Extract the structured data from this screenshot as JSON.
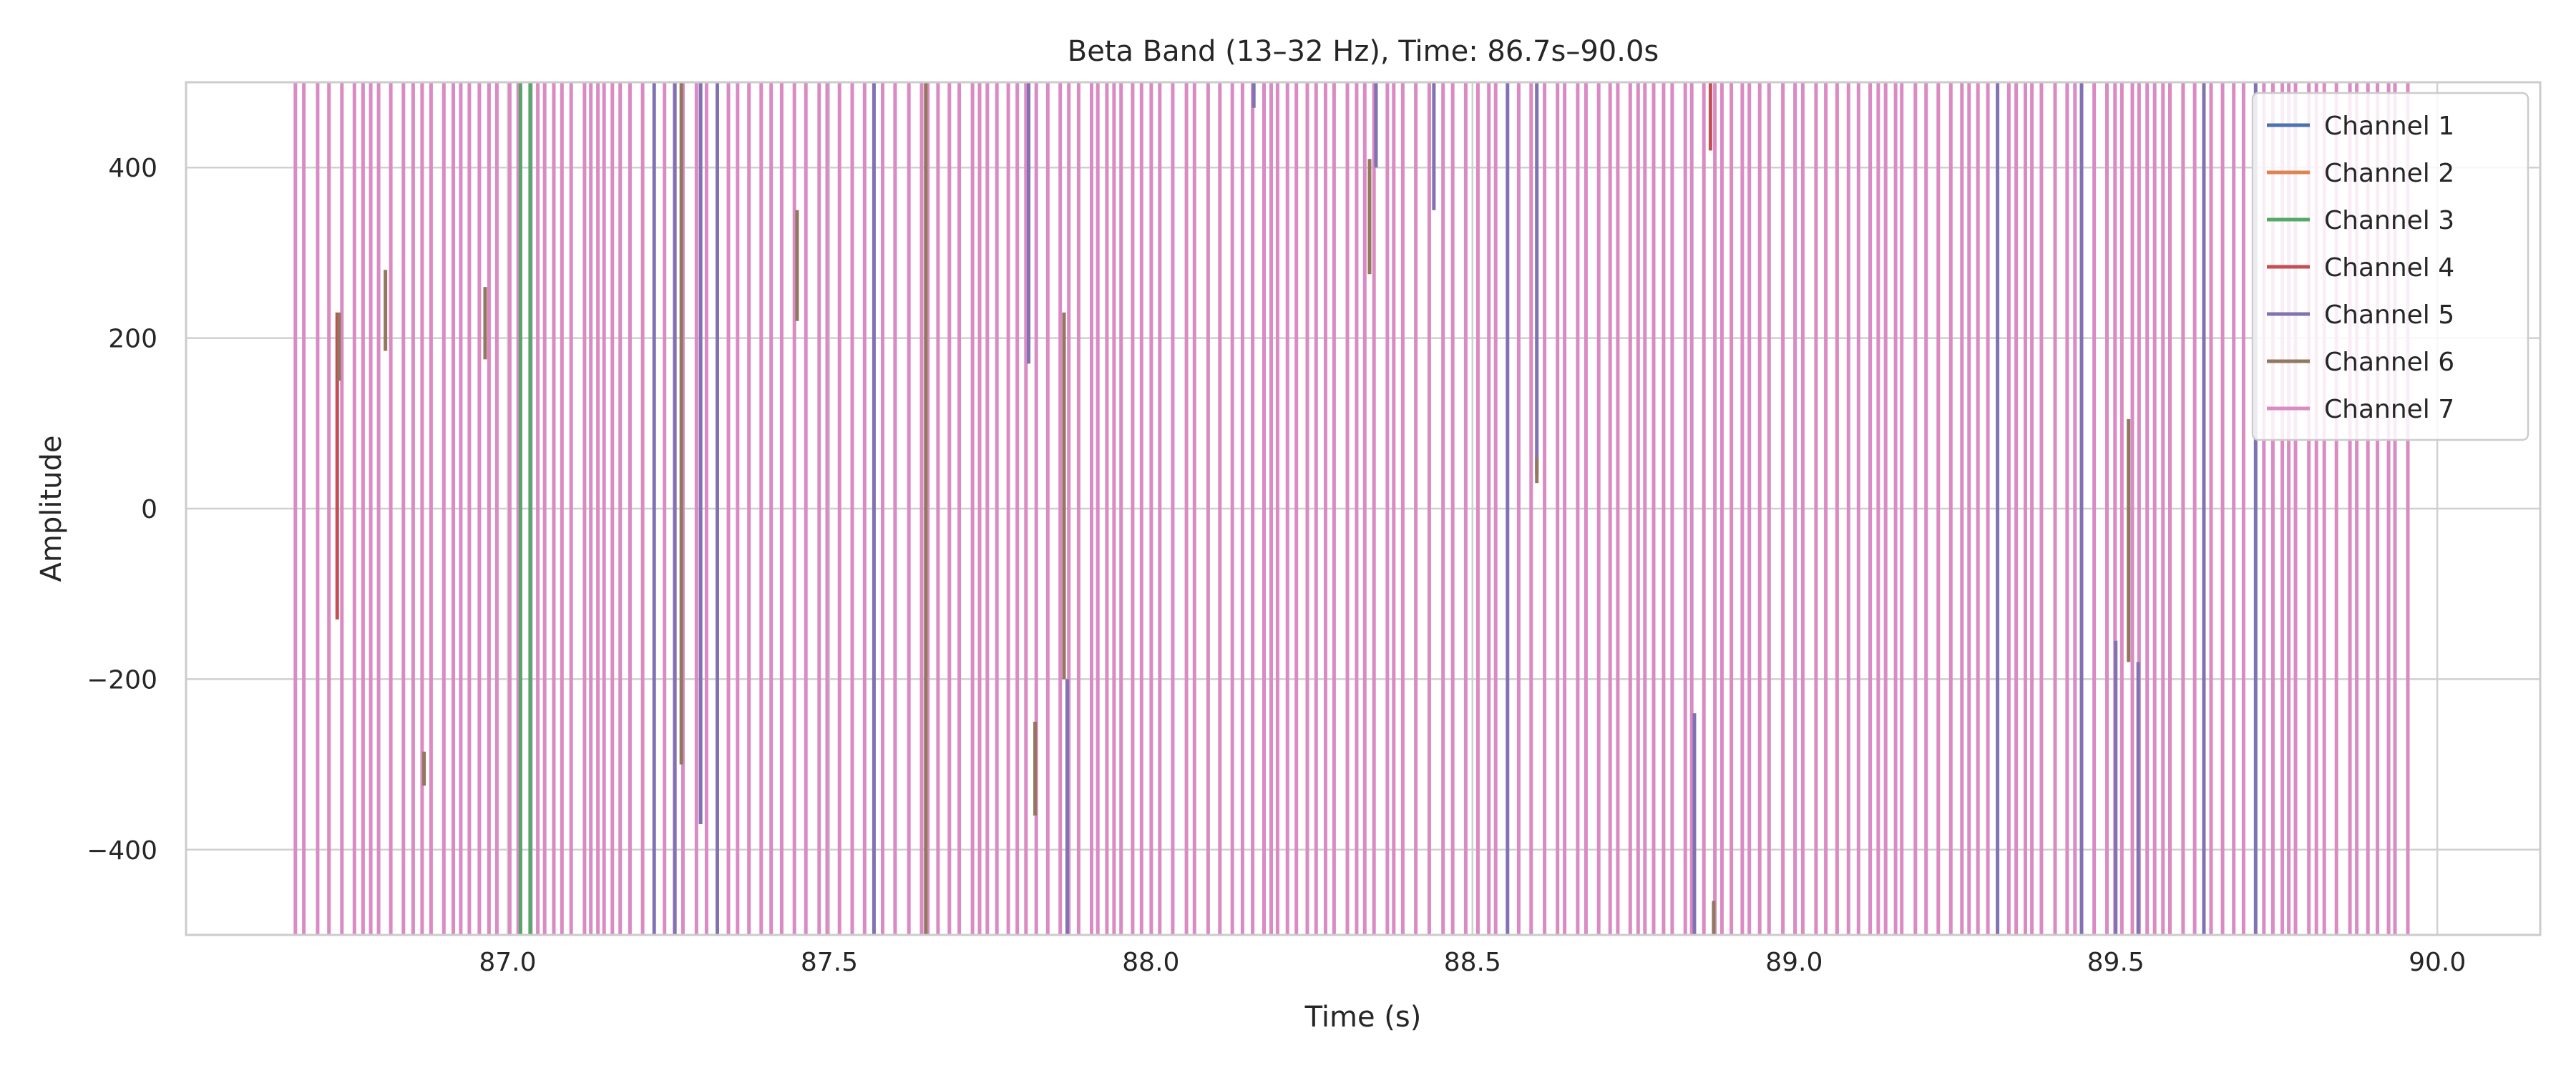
{
  "chart_data": {
    "type": "line",
    "title": "Beta Band (13–32 Hz), Time: 86.7s–90.0s",
    "xlabel": "Time (s)",
    "ylabel": "Amplitude",
    "xlim": [
      86.5,
      90.16
    ],
    "ylim": [
      -500,
      500
    ],
    "xticks": [
      87.0,
      87.5,
      88.0,
      88.5,
      89.0,
      89.5,
      90.0
    ],
    "xtick_labels": [
      "87.0",
      "87.5",
      "88.0",
      "88.5",
      "89.0",
      "89.5",
      "90.0"
    ],
    "yticks": [
      -400,
      -200,
      0,
      200,
      400
    ],
    "ytick_labels": [
      "−400",
      "−200",
      "0",
      "200",
      "400"
    ],
    "grid": true,
    "legend_position": "top-right",
    "time_range": [
      86.67,
      89.97
    ],
    "series": [
      {
        "name": "Channel 1",
        "color": "#4c72b0"
      },
      {
        "name": "Channel 2",
        "color": "#dd8452"
      },
      {
        "name": "Channel 3",
        "color": "#55a868"
      },
      {
        "name": "Channel 4",
        "color": "#c44e52"
      },
      {
        "name": "Channel 5",
        "color": "#8172b3"
      },
      {
        "name": "Channel 6",
        "color": "#937860"
      },
      {
        "name": "Channel 7",
        "color": "#da8bc3"
      }
    ],
    "segments": [
      {
        "series": 3,
        "x": 86.735,
        "y": [
          -130,
          230
        ]
      },
      {
        "series": 5,
        "x": 86.738,
        "y": [
          150,
          230
        ]
      },
      {
        "series": 5,
        "x": 86.81,
        "y": [
          185,
          280
        ]
      },
      {
        "series": 5,
        "x": 86.87,
        "y": [
          -325,
          -285
        ]
      },
      {
        "series": 5,
        "x": 86.965,
        "y": [
          175,
          260
        ]
      },
      {
        "series": 2,
        "x": 87.02,
        "y": [
          -500,
          500
        ]
      },
      {
        "series": 2,
        "x": 87.035,
        "y": [
          -500,
          500
        ]
      },
      {
        "series": 4,
        "x": 87.26,
        "y": [
          -500,
          500
        ]
      },
      {
        "series": 5,
        "x": 87.27,
        "y": [
          -300,
          500
        ]
      },
      {
        "series": 4,
        "x": 87.3,
        "y": [
          -370,
          500
        ]
      },
      {
        "series": 5,
        "x": 87.45,
        "y": [
          220,
          350
        ]
      },
      {
        "series": 5,
        "x": 87.65,
        "y": [
          -500,
          500
        ]
      },
      {
        "series": 4,
        "x": 87.81,
        "y": [
          170,
          500
        ]
      },
      {
        "series": 5,
        "x": 87.82,
        "y": [
          -360,
          -250
        ]
      },
      {
        "series": 4,
        "x": 87.87,
        "y": [
          -500,
          -200
        ]
      },
      {
        "series": 5,
        "x": 87.865,
        "y": [
          -200,
          230
        ]
      },
      {
        "series": 4,
        "x": 88.16,
        "y": [
          470,
          500
        ]
      },
      {
        "series": 5,
        "x": 88.34,
        "y": [
          275,
          410
        ]
      },
      {
        "series": 4,
        "x": 88.35,
        "y": [
          400,
          500
        ]
      },
      {
        "series": 4,
        "x": 88.44,
        "y": [
          350,
          500
        ]
      },
      {
        "series": 4,
        "x": 88.6,
        "y": [
          40,
          500
        ]
      },
      {
        "series": 5,
        "x": 88.6,
        "y": [
          30,
          60
        ]
      },
      {
        "series": 4,
        "x": 88.845,
        "y": [
          -500,
          -240
        ]
      },
      {
        "series": 3,
        "x": 88.87,
        "y": [
          420,
          500
        ]
      },
      {
        "series": 5,
        "x": 88.875,
        "y": [
          -500,
          -460
        ]
      },
      {
        "series": 4,
        "x": 89.5,
        "y": [
          -500,
          -155
        ]
      },
      {
        "series": 5,
        "x": 89.52,
        "y": [
          -180,
          105
        ]
      },
      {
        "series": 4,
        "x": 89.535,
        "y": [
          -500,
          -180
        ]
      }
    ]
  }
}
